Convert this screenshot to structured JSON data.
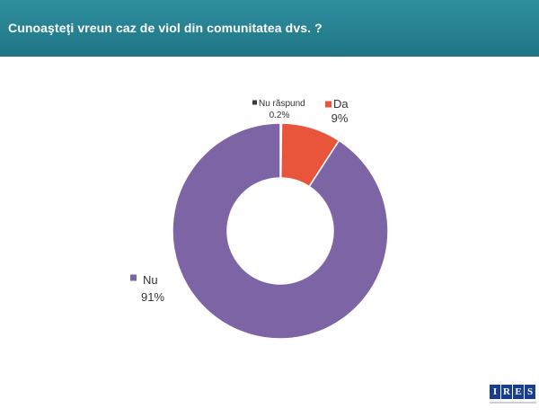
{
  "header": {
    "title": "Cunoaşteţi vreun caz de viol din comunitatea dvs. ?"
  },
  "logo": {
    "letters": [
      "I",
      "R",
      "E",
      "S"
    ]
  },
  "chart_data": {
    "type": "pie",
    "donut": true,
    "title": "",
    "slices": [
      {
        "label": "Nu răspund",
        "value": 0.2,
        "value_label": "0.2%",
        "color": "#3a3a3a"
      },
      {
        "label": "Da",
        "value": 9,
        "value_label": "9%",
        "color": "#e8553a"
      },
      {
        "label": "Nu",
        "value": 91,
        "value_label": "91%",
        "color": "#7d64a4"
      }
    ]
  }
}
